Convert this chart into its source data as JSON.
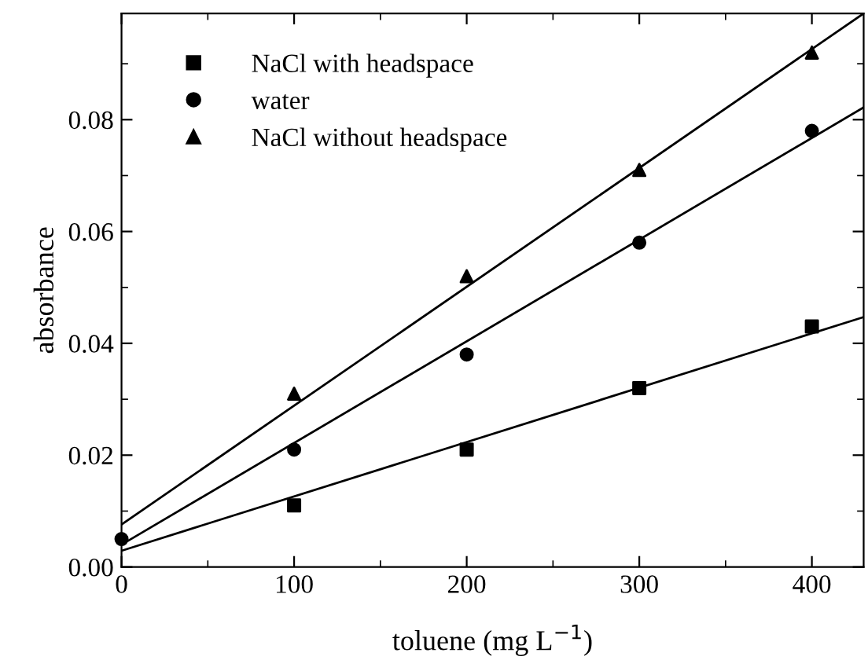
{
  "chart_data": {
    "type": "scatter",
    "xlabel": "toluene (mg L$^{−1}$)",
    "ylabel": "absorbance",
    "xlim": [
      0,
      430
    ],
    "ylim": [
      0,
      0.099
    ],
    "xticks": [
      0,
      100,
      200,
      300,
      400
    ],
    "yticks": [
      {
        "value": 0,
        "label": "0.00"
      },
      {
        "value": 0.02,
        "label": "0.02"
      },
      {
        "value": 0.04,
        "label": "0.04"
      },
      {
        "value": 0.06,
        "label": "0.06"
      },
      {
        "value": 0.08,
        "label": "0.08"
      }
    ],
    "grid": false,
    "legend": "top left",
    "series": [
      {
        "name": "NaCl with headspace",
        "color": "#000000",
        "marker": "square",
        "x": [
          100,
          200,
          300,
          400
        ],
        "values": [
          0.011,
          0.021,
          0.032,
          0.043
        ]
      },
      {
        "name": "water",
        "color": "#000000",
        "marker": "circle",
        "x": [
          0,
          100,
          200,
          300,
          400
        ],
        "values": [
          0.005,
          0.021,
          0.038,
          0.058,
          0.078
        ]
      },
      {
        "name": "NaCl without headspace",
        "color": "#000000",
        "marker": "triangle",
        "x": [
          100,
          200,
          300,
          400
        ],
        "values": [
          0.031,
          0.052,
          0.071,
          0.092
        ]
      },
      {
        "type": "line",
        "color": "#000000",
        "marker": "none",
        "line_style": "solid",
        "x": [
          0,
          430
        ],
        "values": [
          0.0029,
          0.0447
        ]
      },
      {
        "type": "line",
        "color": "#000000",
        "marker": "none",
        "line_style": "solid",
        "x": [
          0,
          430
        ],
        "values": [
          0.004,
          0.0822
        ]
      },
      {
        "type": "line",
        "color": "#000000",
        "marker": "none",
        "line_style": "solid",
        "x": [
          0,
          430
        ],
        "values": [
          0.0076,
          0.099
        ]
      }
    ]
  }
}
